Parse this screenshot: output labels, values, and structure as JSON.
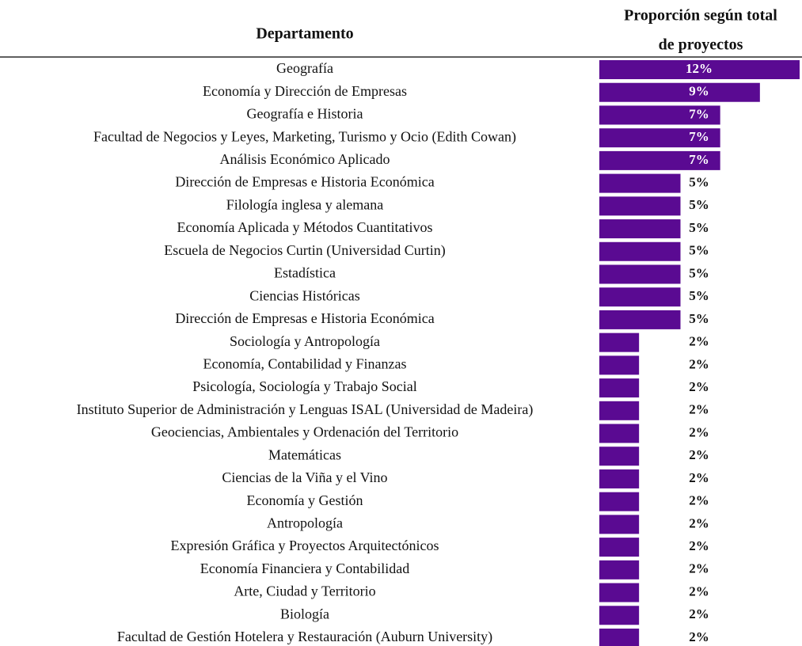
{
  "chart_data": {
    "type": "bar",
    "orientation": "horizontal",
    "category_header": "Departamento",
    "value_header": [
      "Proporción según total",
      "de proyectos"
    ],
    "color": "#5a0a92",
    "categories": [
      "Geografía",
      "Economía y Dirección de Empresas",
      "Geografía e Historia",
      "Facultad de Negocios y Leyes, Marketing, Turismo y Ocio (Edith Cowan)",
      "Análisis Económico Aplicado",
      "Dirección de Empresas e Historia Económica",
      "Filología inglesa y alemana",
      "Economía Aplicada y Métodos Cuantitativos",
      "Escuela de Negocios Curtin (Universidad Curtin)",
      "Estadística",
      "Ciencias Históricas",
      "Dirección de Empresas e Historia Económica",
      "Sociología y Antropología",
      "Economía, Contabilidad y Finanzas",
      "Psicología, Sociología y Trabajo Social",
      "Instituto Superior de Administración y Lenguas ISAL (Universidad de Madeira)",
      "Geociencias, Ambientales y Ordenación del Territorio",
      "Matemáticas",
      "Ciencias de la Viña y el Vino",
      "Economía y Gestión",
      "Antropología",
      "Expresión Gráfica y Proyectos Arquitectónicos",
      "Economía Financiera y Contabilidad",
      "Arte, Ciudad y Territorio",
      "Biología",
      "Facultad de Gestión Hotelera y Restauración (Auburn University)"
    ],
    "values": [
      11.6,
      9.3,
      7.0,
      7.0,
      7.0,
      4.7,
      4.7,
      4.7,
      4.7,
      4.7,
      4.7,
      4.7,
      2.3,
      2.3,
      2.3,
      2.3,
      2.3,
      2.3,
      2.3,
      2.3,
      2.3,
      2.3,
      2.3,
      2.3,
      2.3,
      2.3
    ],
    "value_labels": [
      "12%",
      "9%",
      "7%",
      "7%",
      "7%",
      "5%",
      "5%",
      "5%",
      "5%",
      "5%",
      "5%",
      "5%",
      "2%",
      "2%",
      "2%",
      "2%",
      "2%",
      "2%",
      "2%",
      "2%",
      "2%",
      "2%",
      "2%",
      "2%",
      "2%",
      "2%"
    ]
  }
}
